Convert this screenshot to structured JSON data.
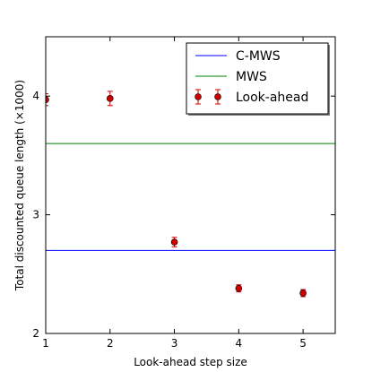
{
  "chart_data": {
    "type": "scatter",
    "title": "",
    "xlabel": "Look-ahead step size",
    "ylabel": "Total discounted queue length (×1000)",
    "xlim": [
      1,
      5.5
    ],
    "ylim": [
      2,
      4.5
    ],
    "xticks": [
      1,
      2,
      3,
      4,
      5
    ],
    "xtick_labels": [
      "1",
      "2",
      "3",
      "4",
      "5"
    ],
    "yticks": [
      2,
      3,
      4
    ],
    "ytick_labels": [
      "2",
      "3",
      "4"
    ],
    "grid": false,
    "legend_position": "top-right",
    "series": [
      {
        "name": "C-MWS",
        "kind": "hline",
        "y": 2.7,
        "color": "#0000ff"
      },
      {
        "name": "MWS",
        "kind": "hline",
        "y": 3.6,
        "color": "#008000"
      },
      {
        "name": "Look-ahead",
        "kind": "errorbar",
        "color": "#cc0000",
        "x": [
          1,
          2,
          3,
          4,
          5
        ],
        "y": [
          3.97,
          3.98,
          2.77,
          2.38,
          2.34
        ],
        "err": [
          0.05,
          0.06,
          0.04,
          0.03,
          0.03
        ]
      }
    ]
  }
}
